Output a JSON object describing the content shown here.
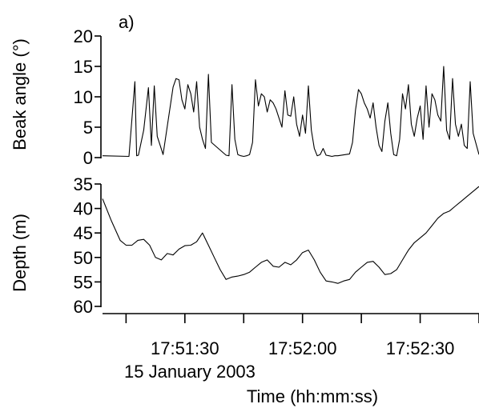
{
  "chart_data": [
    {
      "type": "line",
      "panel_label": "a)",
      "ylabel": "Beak angle (°)",
      "ylim": [
        0,
        20
      ],
      "yticks": [
        "0",
        "5",
        "10",
        "15",
        "20"
      ],
      "x_range_seconds_after_17_51_00": [
        -4,
        60
      ],
      "series": [
        {
          "note": "spiky series; peaks approx",
          "x": [
            -4.0,
            0.5,
            1.5,
            1.8,
            2.1,
            3.0,
            3.8,
            4.3,
            4.8,
            5.3,
            5.8,
            6.3,
            8.0,
            8.5,
            9.0,
            9.5,
            10.0,
            10.5,
            11.0,
            11.5,
            12.0,
            12.5,
            13.0,
            13.5,
            14.0,
            14.5,
            17.0,
            17.5,
            18.0,
            18.5,
            19.0,
            19.5,
            20.0,
            20.5,
            21.0,
            21.5,
            22.0,
            22.5,
            23.0,
            23.5,
            24.0,
            24.5,
            25.0,
            25.5,
            26.0,
            26.5,
            27.0,
            27.5,
            28.0,
            28.5,
            29.0,
            29.5,
            30.0,
            30.5,
            31.0,
            31.5,
            32.0,
            32.5,
            33.0,
            33.5,
            34.0,
            34.5,
            35.0,
            35.5,
            36.0,
            38.0,
            38.5,
            39.0,
            39.5,
            40.0,
            40.5,
            41.0,
            41.5,
            42.0,
            42.5,
            43.0,
            43.5,
            44.0,
            44.5,
            45.0,
            45.5,
            46.0,
            46.5,
            47.0,
            47.5,
            48.0,
            48.5,
            49.0,
            49.5,
            50.0,
            50.5,
            51.0,
            51.5,
            52.0,
            52.5,
            53.0,
            53.5,
            54.0,
            54.5,
            55.0,
            55.5,
            56.0,
            56.5,
            57.0,
            57.5,
            58.0,
            58.5,
            59.0,
            60.0
          ],
          "values": [
            0.3,
            0.2,
            12.5,
            0.3,
            0.4,
            4.5,
            11.5,
            2.0,
            11.8,
            3.5,
            2.0,
            0.5,
            11.6,
            13.0,
            12.8,
            9.5,
            8.0,
            12.0,
            10.5,
            7.5,
            12.5,
            5.0,
            3.0,
            1.5,
            13.7,
            2.5,
            0.4,
            0.3,
            12.0,
            3.0,
            0.5,
            0.3,
            0.2,
            0.3,
            0.5,
            2.5,
            12.8,
            8.5,
            10.5,
            10.0,
            7.5,
            9.5,
            9.0,
            8.0,
            6.5,
            5.0,
            11.0,
            7.0,
            6.8,
            10.0,
            5.5,
            3.5,
            7.0,
            4.0,
            11.8,
            4.5,
            1.5,
            0.3,
            0.5,
            1.5,
            0.4,
            0.3,
            0.2,
            0.3,
            0.3,
            0.6,
            2.5,
            7.8,
            11.2,
            10.5,
            9.0,
            8.0,
            6.5,
            9.0,
            5.0,
            2.0,
            1.0,
            6.0,
            9.0,
            4.0,
            0.5,
            0.3,
            3.0,
            10.5,
            8.0,
            12.0,
            5.5,
            3.5,
            6.5,
            8.5,
            3.0,
            11.8,
            5.0,
            10.5,
            9.5,
            7.0,
            6.0,
            15.0,
            4.5,
            3.0,
            13.0,
            5.5,
            3.5,
            5.5,
            2.0,
            1.5,
            12.5,
            4.0,
            0.5
          ]
        }
      ]
    },
    {
      "type": "line",
      "ylabel": "Depth (m)",
      "ylim": [
        35,
        60
      ],
      "y_inverted": true,
      "yticks": [
        "35",
        "40",
        "45",
        "50",
        "55",
        "60"
      ],
      "xlabel": "Time (hh:mm:ss)",
      "x_date_label": "15 January 2003",
      "xticks": [
        "17:51:30",
        "17:52:00",
        "17:52:30"
      ],
      "x_range_seconds_after_17_51_00": [
        -4,
        60
      ],
      "series": [
        {
          "x": [
            -4.0,
            -2.5,
            -1.0,
            0.0,
            1.0,
            2.0,
            3.0,
            4.0,
            5.0,
            6.0,
            7.0,
            8.0,
            9.0,
            10.0,
            11.0,
            12.0,
            13.0,
            14.0,
            15.0,
            16.0,
            17.0,
            18.0,
            19.0,
            20.0,
            21.0,
            22.0,
            23.0,
            24.0,
            25.0,
            26.0,
            27.0,
            28.0,
            29.0,
            30.0,
            31.0,
            32.0,
            33.0,
            34.0,
            35.0,
            36.0,
            37.0,
            38.0,
            39.0,
            40.0,
            41.0,
            42.0,
            43.0,
            44.0,
            45.0,
            46.0,
            47.0,
            48.0,
            49.0,
            50.0,
            51.0,
            52.0,
            53.0,
            54.0,
            55.0,
            56.0,
            57.0,
            58.0,
            59.0,
            60.0
          ],
          "values": [
            38.0,
            42.5,
            46.5,
            47.5,
            47.5,
            46.5,
            46.3,
            47.5,
            50.0,
            50.5,
            49.2,
            49.5,
            48.3,
            47.6,
            47.5,
            46.8,
            45.0,
            47.5,
            50.0,
            52.5,
            54.5,
            54.0,
            53.8,
            53.5,
            53.0,
            52.0,
            51.0,
            50.5,
            51.8,
            52.0,
            51.0,
            51.5,
            50.5,
            49.0,
            48.5,
            50.5,
            53.0,
            54.8,
            55.0,
            55.3,
            54.8,
            54.5,
            53.0,
            52.0,
            51.0,
            50.8,
            52.0,
            53.5,
            53.3,
            52.5,
            50.5,
            48.5,
            47.0,
            46.0,
            45.0,
            43.5,
            42.0,
            41.0,
            40.5,
            39.5,
            38.5,
            37.5,
            36.5,
            35.5
          ]
        }
      ]
    }
  ]
}
